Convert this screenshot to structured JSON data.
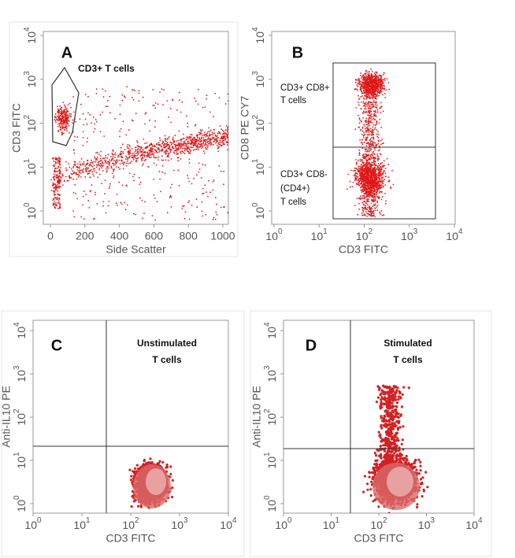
{
  "panels": [
    {
      "letter": "A",
      "x_label": "Side Scatter",
      "y_label": "CD3 FITC",
      "x_ticks": [
        "0",
        "200",
        "400",
        "600",
        "800",
        "1000"
      ],
      "y_ticks": [
        {
          "base": "10",
          "exp": "0"
        },
        {
          "base": "10",
          "exp": "1"
        },
        {
          "base": "10",
          "exp": "2"
        },
        {
          "base": "10",
          "exp": "3"
        },
        {
          "base": "10",
          "exp": "4"
        }
      ],
      "annotations": [
        "CD3+ T cells"
      ]
    },
    {
      "letter": "B",
      "x_label": "CD3 FITC",
      "y_label": "CD8 PE CY7",
      "x_ticks": [
        {
          "base": "10",
          "exp": "0"
        },
        {
          "base": "10",
          "exp": "1"
        },
        {
          "base": "10",
          "exp": "2"
        },
        {
          "base": "10",
          "exp": "3"
        },
        {
          "base": "10",
          "exp": "4"
        }
      ],
      "y_ticks": [
        {
          "base": "10",
          "exp": "0"
        },
        {
          "base": "10",
          "exp": "1"
        },
        {
          "base": "10",
          "exp": "2"
        },
        {
          "base": "10",
          "exp": "3"
        },
        {
          "base": "10",
          "exp": "4"
        }
      ],
      "annotations": [
        "CD3+ CD8+",
        "T cells",
        "CD3+ CD8-",
        "(CD4+)",
        "T cells"
      ]
    },
    {
      "letter": "C",
      "x_label": "CD3 FITC",
      "y_label": "Anti-IL10 PE",
      "x_ticks": [
        {
          "base": "10",
          "exp": "0"
        },
        {
          "base": "10",
          "exp": "1"
        },
        {
          "base": "10",
          "exp": "2"
        },
        {
          "base": "10",
          "exp": "3"
        },
        {
          "base": "10",
          "exp": "4"
        }
      ],
      "y_ticks": [
        {
          "base": "10",
          "exp": "0"
        },
        {
          "base": "10",
          "exp": "1"
        },
        {
          "base": "10",
          "exp": "2"
        },
        {
          "base": "10",
          "exp": "3"
        },
        {
          "base": "10",
          "exp": "4"
        }
      ],
      "annotations": [
        "Unstimulated",
        "T cells"
      ]
    },
    {
      "letter": "D",
      "x_label": "CD3 FITC",
      "y_label": "Anti-IL10 PE",
      "x_ticks": [
        {
          "base": "10",
          "exp": "0"
        },
        {
          "base": "10",
          "exp": "1"
        },
        {
          "base": "10",
          "exp": "2"
        },
        {
          "base": "10",
          "exp": "3"
        },
        {
          "base": "10",
          "exp": "4"
        }
      ],
      "y_ticks": [
        {
          "base": "10",
          "exp": "0"
        },
        {
          "base": "10",
          "exp": "1"
        },
        {
          "base": "10",
          "exp": "2"
        },
        {
          "base": "10",
          "exp": "3"
        },
        {
          "base": "10",
          "exp": "4"
        }
      ],
      "annotations": [
        "Stimulated",
        "T cells"
      ]
    }
  ]
}
